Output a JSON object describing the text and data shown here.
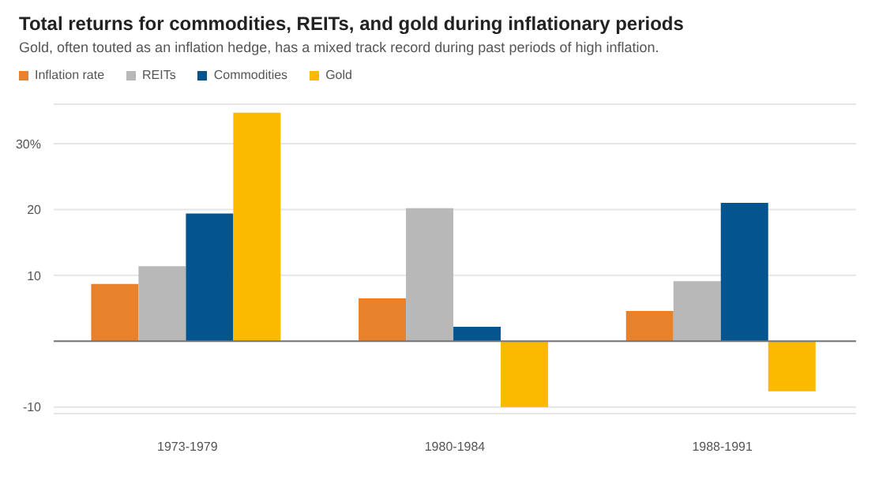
{
  "chart_data": {
    "type": "bar",
    "title": "Total returns for commodities, REITs, and gold during inflationary periods",
    "subtitle": "Gold, often touted as an inflation hedge, has a mixed track record during past periods of high inflation.",
    "categories": [
      "1973-1979",
      "1980-1984",
      "1988-1991"
    ],
    "series": [
      {
        "name": "Inflation rate",
        "color": "#e8812c",
        "values": [
          8.7,
          6.5,
          4.6
        ]
      },
      {
        "name": "REITs",
        "color": "#b8b8b8",
        "values": [
          11.4,
          20.2,
          9.1
        ]
      },
      {
        "name": "Commodities",
        "color": "#03548f",
        "values": [
          19.4,
          2.2,
          21
        ]
      },
      {
        "name": "Gold",
        "color": "#fbb900",
        "values": [
          34.7,
          -10,
          -7.6
        ]
      }
    ],
    "ylim": [
      -11,
      36
    ],
    "yticks": [
      {
        "value": 30,
        "label": "30%"
      },
      20,
      10,
      {
        "value": 0,
        "label": null
      },
      -10
    ],
    "grid": "y",
    "legend": "top left"
  }
}
